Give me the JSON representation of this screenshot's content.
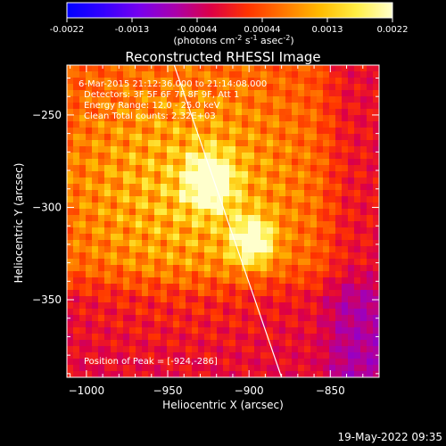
{
  "chart_data": {
    "type": "heatmap",
    "title": "Reconstructed RHESSI Image",
    "colorbar": {
      "ticks": [
        "-0.0022",
        "-0.0013",
        "-0.00044",
        "0.00044",
        "0.0013",
        "0.0022"
      ],
      "range": [
        -0.0022,
        0.0022
      ],
      "unit_prefix": "(photons cm",
      "unit_exp1": "-2",
      "unit_mid": " s",
      "unit_exp2": "-1",
      "unit_mid2": " asec",
      "unit_exp3": "-2",
      "unit_suffix": ")",
      "colors": [
        "#0000ff",
        "#3300ff",
        "#7700ee",
        "#aa00aa",
        "#dd0044",
        "#ff3300",
        "#ff7700",
        "#ffbb00",
        "#ffee44",
        "#ffffcc"
      ]
    },
    "xlabel": "Heliocentric X (arcsec)",
    "ylabel": "Heliocentric Y (arcsec)",
    "xlim": [
      -1012,
      -820
    ],
    "ylim": [
      -392,
      -223
    ],
    "xticks": [
      -1000,
      -950,
      -900,
      -850
    ],
    "yticks": [
      -250,
      -300,
      -350
    ],
    "xtick_labels": [
      "−1000",
      "−950",
      "−900",
      "−850"
    ],
    "ytick_labels": [
      "−250",
      "−300",
      "−350"
    ],
    "sources": [
      {
        "x": -924,
        "y": -286,
        "amplitude": 0.0022,
        "sigma": 10
      },
      {
        "x": -898,
        "y": -318,
        "amplitude": 0.0019,
        "sigma": 9
      }
    ],
    "limb": [
      [
        -946,
        -223
      ],
      [
        -880,
        -392
      ]
    ],
    "peak": {
      "x": -924,
      "y": -286
    }
  },
  "annotations": {
    "time_range": "6-Mar-2015 21:12:36.000 to 21:14:08.000",
    "detectors": "Detectors: 3F 5F 6F 7F 8F 9F, Att 1",
    "energy": "Energy Range: 12.0 - 25.0 keV",
    "clean": "Clean     Total counts: 2.32E+03",
    "peak": "Position of Peak = [-924,-286]"
  },
  "footer": {
    "timestamp": "19-May-2022 09:35"
  }
}
